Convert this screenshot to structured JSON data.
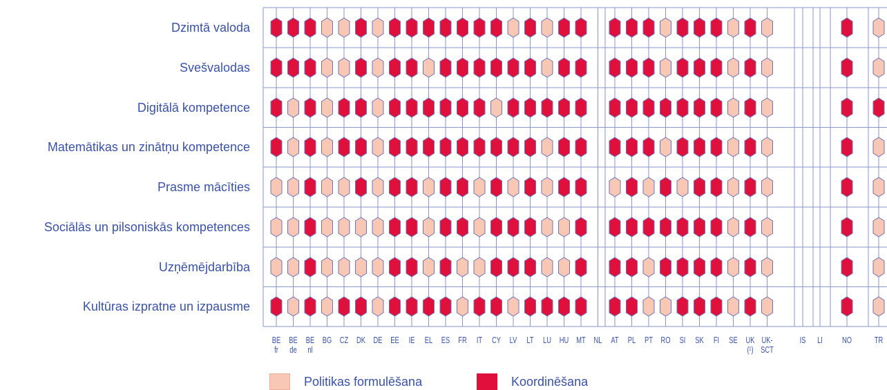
{
  "chart_data": {
    "type": "heatmap",
    "rows": [
      "Dzimtā valoda",
      "Svešvalodas",
      "Digitālā kompetence",
      "Matemātikas un zinātņu kompetence",
      "Prasme mācīties",
      "Sociālās un pilsoniskās kompetences",
      "Uzņēmējdarbība",
      "Kultūras izpratne un izpausme"
    ],
    "columns": [
      {
        "code": "BE",
        "sub": "fr"
      },
      {
        "code": "BE",
        "sub": "de"
      },
      {
        "code": "BE",
        "sub": "nl"
      },
      {
        "code": "BG",
        "sub": ""
      },
      {
        "code": "CZ",
        "sub": ""
      },
      {
        "code": "DK",
        "sub": ""
      },
      {
        "code": "DE",
        "sub": ""
      },
      {
        "code": "EE",
        "sub": ""
      },
      {
        "code": "IE",
        "sub": ""
      },
      {
        "code": "EL",
        "sub": ""
      },
      {
        "code": "ES",
        "sub": ""
      },
      {
        "code": "FR",
        "sub": ""
      },
      {
        "code": "IT",
        "sub": ""
      },
      {
        "code": "CY",
        "sub": ""
      },
      {
        "code": "LV",
        "sub": ""
      },
      {
        "code": "LT",
        "sub": ""
      },
      {
        "code": "LU",
        "sub": ""
      },
      {
        "code": "HU",
        "sub": ""
      },
      {
        "code": "MT",
        "sub": ""
      },
      {
        "code": "NL",
        "sub": ""
      },
      {
        "code": "AT",
        "sub": ""
      },
      {
        "code": "PL",
        "sub": ""
      },
      {
        "code": "PT",
        "sub": ""
      },
      {
        "code": "RO",
        "sub": ""
      },
      {
        "code": "SI",
        "sub": ""
      },
      {
        "code": "SK",
        "sub": ""
      },
      {
        "code": "FI",
        "sub": ""
      },
      {
        "code": "SE",
        "sub": ""
      },
      {
        "code": "UK",
        "sub": "(¹)"
      },
      {
        "code": "UK-",
        "sub": "SCT"
      },
      {
        "code": "IS",
        "sub": ""
      },
      {
        "code": "LI",
        "sub": ""
      },
      {
        "code": "NO",
        "sub": ""
      },
      {
        "code": "TR",
        "sub": ""
      }
    ],
    "values": [
      [
        "K",
        "K",
        "K",
        "P",
        "P",
        "K",
        "P",
        "K",
        "K",
        "K",
        "K",
        "K",
        "K",
        "K",
        "P",
        "K",
        "P",
        "K",
        "K",
        "",
        "K",
        "K",
        "K",
        "P",
        "K",
        "K",
        "K",
        "P",
        "K",
        "P",
        "",
        "",
        "K",
        "P"
      ],
      [
        "K",
        "K",
        "K",
        "P",
        "P",
        "K",
        "P",
        "K",
        "K",
        "P",
        "K",
        "K",
        "K",
        "K",
        "K",
        "K",
        "P",
        "K",
        "K",
        "",
        "K",
        "K",
        "K",
        "P",
        "K",
        "K",
        "K",
        "P",
        "K",
        "P",
        "",
        "",
        "K",
        "P"
      ],
      [
        "K",
        "P",
        "K",
        "P",
        "K",
        "K",
        "P",
        "K",
        "K",
        "K",
        "K",
        "K",
        "K",
        "P",
        "K",
        "K",
        "K",
        "K",
        "K",
        "",
        "K",
        "K",
        "K",
        "K",
        "K",
        "K",
        "K",
        "P",
        "K",
        "P",
        "",
        "",
        "K",
        "K"
      ],
      [
        "K",
        "P",
        "K",
        "P",
        "K",
        "K",
        "P",
        "K",
        "K",
        "K",
        "K",
        "K",
        "K",
        "K",
        "K",
        "K",
        "P",
        "K",
        "K",
        "",
        "K",
        "K",
        "K",
        "P",
        "K",
        "K",
        "K",
        "P",
        "K",
        "P",
        "",
        "",
        "K",
        "P"
      ],
      [
        "P",
        "P",
        "K",
        "P",
        "P",
        "K",
        "P",
        "K",
        "K",
        "P",
        "K",
        "K",
        "P",
        "K",
        "P",
        "K",
        "P",
        "K",
        "K",
        "",
        "P",
        "K",
        "P",
        "K",
        "P",
        "K",
        "K",
        "P",
        "K",
        "P",
        "",
        "",
        "K",
        "P"
      ],
      [
        "P",
        "P",
        "K",
        "P",
        "P",
        "P",
        "P",
        "K",
        "K",
        "P",
        "K",
        "K",
        "P",
        "K",
        "K",
        "K",
        "P",
        "P",
        "K",
        "",
        "K",
        "K",
        "K",
        "K",
        "K",
        "K",
        "K",
        "P",
        "K",
        "P",
        "",
        "",
        "K",
        "P"
      ],
      [
        "P",
        "P",
        "K",
        "P",
        "P",
        "P",
        "P",
        "K",
        "K",
        "P",
        "K",
        "P",
        "P",
        "K",
        "K",
        "K",
        "P",
        "P",
        "K",
        "",
        "K",
        "K",
        "P",
        "K",
        "K",
        "K",
        "K",
        "P",
        "K",
        "P",
        "",
        "",
        "K",
        "P"
      ],
      [
        "K",
        "P",
        "K",
        "P",
        "K",
        "K",
        "P",
        "K",
        "K",
        "K",
        "K",
        "P",
        "K",
        "K",
        "P",
        "K",
        "K",
        "K",
        "K",
        "",
        "K",
        "K",
        "P",
        "P",
        "K",
        "K",
        "K",
        "P",
        "K",
        "P",
        "",
        "",
        "K",
        "P"
      ]
    ],
    "legend": [
      {
        "key": "P",
        "label": "Politikas formulēšana",
        "color": "#f8c8b4"
      },
      {
        "key": "K",
        "label": "Koordinēšana",
        "color": "#e0103d"
      }
    ],
    "legend_position": "bottom",
    "grid": true,
    "colors": {
      "grid": "#8a96c8",
      "outline": "#6b74ba",
      "text": "#3a52a6"
    }
  }
}
